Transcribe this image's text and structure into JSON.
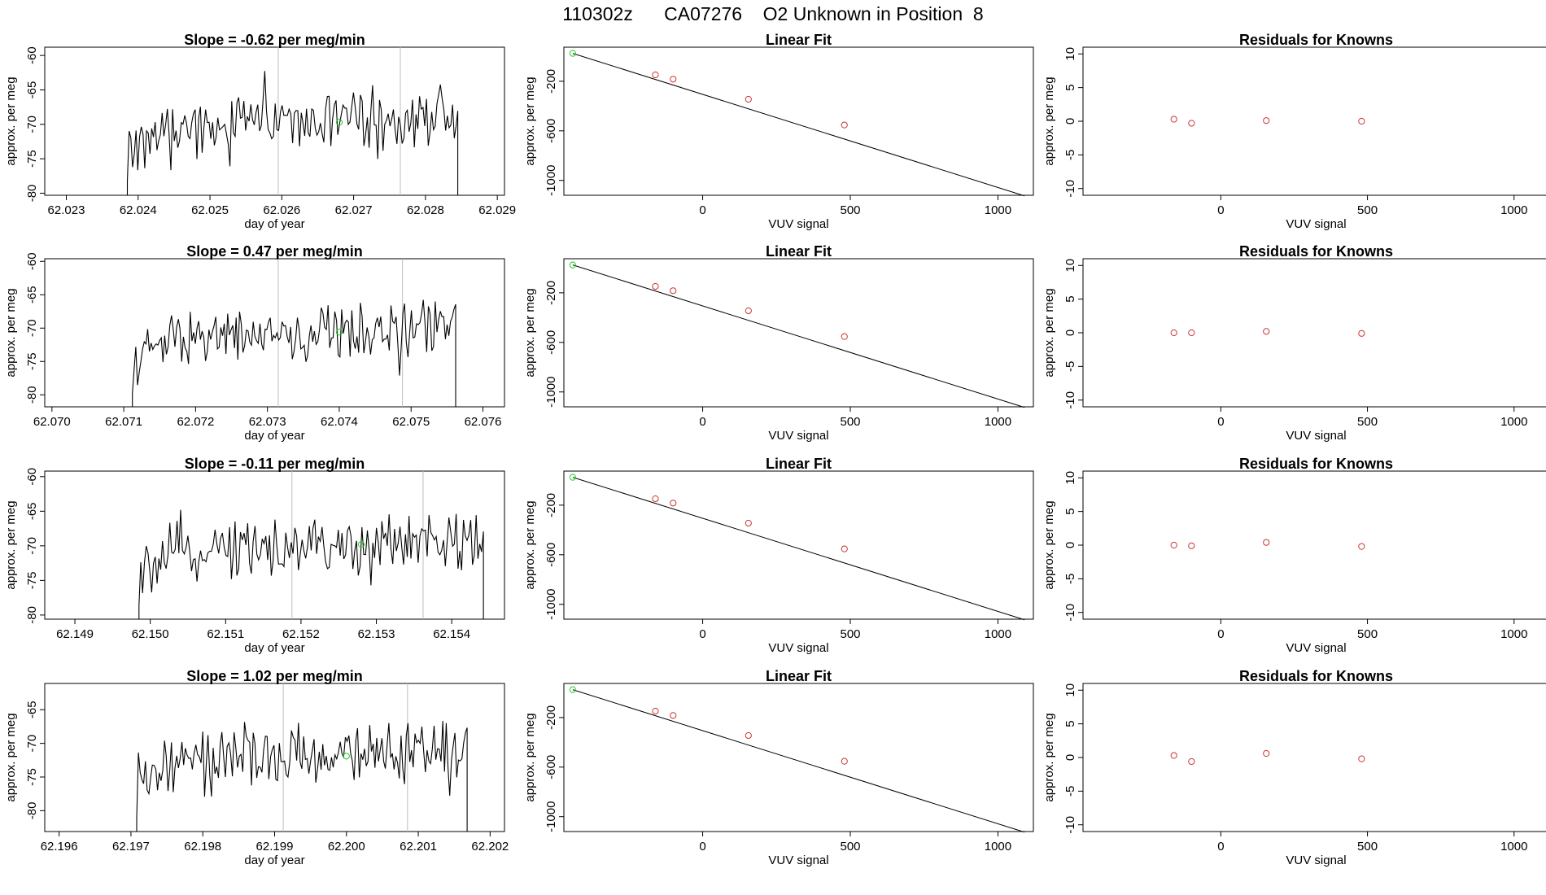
{
  "page_title": "110302z      CA07276    O2 Unknown in Position  8",
  "colors": {
    "trace": "#000000",
    "known": "#cd3333",
    "unknown": "#22cc22",
    "fit": "#000000",
    "marker": "#bebebe",
    "axis": "#000000"
  },
  "rows": [
    {
      "time_series": {
        "title": "Slope =  -0.62  per meg/min",
        "xlabel": "day of year",
        "ylabel": "approx. per meg",
        "xlim": [
          62.0227,
          62.0291
        ],
        "ylim": [
          -80.3,
          -58.8
        ],
        "xticks": [
          "62.023",
          "62.024",
          "62.025",
          "62.026",
          "62.027",
          "62.028",
          "62.029"
        ],
        "yticks": [
          "-80",
          "-75",
          "-70",
          "-65",
          "-60"
        ],
        "data_start": 62.02385,
        "data_end": 62.02845,
        "mean_level": -70.5,
        "markers": [
          62.02595,
          62.02765
        ],
        "unknown_point": {
          "x": 62.0268,
          "y": -69.7
        }
      },
      "linear_fit": {
        "title": "Linear Fit",
        "xlabel": "VUV signal",
        "ylabel": "approx. per meg",
        "xticks": [
          "0",
          "500",
          "1000"
        ],
        "yticks": [
          "-1000",
          "-600",
          "-200"
        ],
        "known_points": [
          [
            -160,
            -148
          ],
          [
            -100,
            -183
          ],
          [
            155,
            -345
          ],
          [
            480,
            -553
          ]
        ],
        "unknown_point": [
          -440,
          25
        ],
        "fit_line": [
          [
            -440,
            25
          ],
          [
            1090,
            -1125
          ]
        ]
      },
      "residuals": {
        "title": "Residuals for Knowns",
        "xlabel": "VUV signal",
        "ylabel": "approx. per meg",
        "xticks": [
          "0",
          "500",
          "1000"
        ],
        "yticks": [
          "-10",
          "-5",
          "0",
          "5",
          "10"
        ],
        "points": [
          [
            -160,
            0.3
          ],
          [
            -100,
            -0.3
          ],
          [
            155,
            0.1
          ],
          [
            480,
            0.0
          ]
        ]
      }
    },
    {
      "time_series": {
        "title": "Slope =  0.47  per meg/min",
        "xlabel": "day of year",
        "ylabel": "approx. per meg",
        "xlim": [
          62.0699,
          62.0763
        ],
        "ylim": [
          -81.8,
          -59.6
        ],
        "xticks": [
          "62.070",
          "62.071",
          "62.072",
          "62.073",
          "62.074",
          "62.075",
          "62.076"
        ],
        "yticks": [
          "-80",
          "-75",
          "-70",
          "-65",
          "-60"
        ],
        "data_start": 62.07112,
        "data_end": 62.07562,
        "mean_level": -71.5,
        "markers": [
          62.07315,
          62.07488
        ],
        "unknown_point": {
          "x": 62.074,
          "y": -70.6
        }
      },
      "linear_fit": {
        "title": "Linear Fit",
        "xlabel": "VUV signal",
        "ylabel": "approx. per meg",
        "xticks": [
          "0",
          "500",
          "1000"
        ],
        "yticks": [
          "-1000",
          "-600",
          "-200"
        ],
        "known_points": [
          [
            -160,
            -148
          ],
          [
            -100,
            -183
          ],
          [
            155,
            -345
          ],
          [
            480,
            -553
          ]
        ],
        "unknown_point": [
          -440,
          25
        ],
        "fit_line": [
          [
            -440,
            25
          ],
          [
            1090,
            -1125
          ]
        ]
      },
      "residuals": {
        "title": "Residuals for Knowns",
        "xlabel": "VUV signal",
        "ylabel": "approx. per meg",
        "xticks": [
          "0",
          "500",
          "1000"
        ],
        "yticks": [
          "-10",
          "-5",
          "0",
          "5",
          "10"
        ],
        "points": [
          [
            -160,
            0.0
          ],
          [
            -100,
            0.0
          ],
          [
            155,
            0.2
          ],
          [
            480,
            -0.1
          ]
        ]
      }
    },
    {
      "time_series": {
        "title": "Slope =  -0.11  per meg/min",
        "xlabel": "day of year",
        "ylabel": "approx. per meg",
        "xlim": [
          62.1486,
          62.1547
        ],
        "ylim": [
          -80.6,
          -59.2
        ],
        "xticks": [
          "62.149",
          "62.150",
          "62.151",
          "62.152",
          "62.153",
          "62.154"
        ],
        "yticks": [
          "-80",
          "-75",
          "-70",
          "-65",
          "-60"
        ],
        "data_start": 62.14985,
        "data_end": 62.15442,
        "mean_level": -70.8,
        "markers": [
          62.15188,
          62.15362
        ],
        "unknown_point": {
          "x": 62.1528,
          "y": -69.8
        }
      },
      "linear_fit": {
        "title": "Linear Fit",
        "xlabel": "VUV signal",
        "ylabel": "approx. per meg",
        "xticks": [
          "0",
          "500",
          "1000"
        ],
        "yticks": [
          "-1000",
          "-600",
          "-200"
        ],
        "known_points": [
          [
            -160,
            -148
          ],
          [
            -100,
            -183
          ],
          [
            155,
            -345
          ],
          [
            480,
            -553
          ]
        ],
        "unknown_point": [
          -440,
          25
        ],
        "fit_line": [
          [
            -440,
            25
          ],
          [
            1090,
            -1125
          ]
        ]
      },
      "residuals": {
        "title": "Residuals for Knowns",
        "xlabel": "VUV signal",
        "ylabel": "approx. per meg",
        "xticks": [
          "0",
          "500",
          "1000"
        ],
        "yticks": [
          "-10",
          "-5",
          "0",
          "5",
          "10"
        ],
        "points": [
          [
            -160,
            0.0
          ],
          [
            -100,
            -0.1
          ],
          [
            155,
            0.4
          ],
          [
            480,
            -0.2
          ]
        ]
      }
    },
    {
      "time_series": {
        "title": "Slope =  1.02  per meg/min",
        "xlabel": "day of year",
        "ylabel": "approx. per meg",
        "xlim": [
          62.1958,
          62.2022
        ],
        "ylim": [
          -83.1,
          -61.1
        ],
        "xticks": [
          "62.196",
          "62.197",
          "62.198",
          "62.199",
          "62.200",
          "62.201",
          "62.202"
        ],
        "yticks": [
          "-80",
          "-75",
          "-70",
          "-65"
        ],
        "data_start": 62.19708,
        "data_end": 62.20168,
        "mean_level": -72.5,
        "markers": [
          62.19912,
          62.20085
        ],
        "unknown_point": {
          "x": 62.2,
          "y": -71.9
        }
      },
      "linear_fit": {
        "title": "Linear Fit",
        "xlabel": "VUV signal",
        "ylabel": "approx. per meg",
        "xticks": [
          "0",
          "500",
          "1000"
        ],
        "yticks": [
          "-1000",
          "-600",
          "-200"
        ],
        "known_points": [
          [
            -160,
            -148
          ],
          [
            -100,
            -183
          ],
          [
            155,
            -345
          ],
          [
            480,
            -553
          ]
        ],
        "unknown_point": [
          -440,
          25
        ],
        "fit_line": [
          [
            -440,
            25
          ],
          [
            1090,
            -1125
          ]
        ]
      },
      "residuals": {
        "title": "Residuals for Knowns",
        "xlabel": "VUV signal",
        "ylabel": "approx. per meg",
        "xticks": [
          "0",
          "500",
          "1000"
        ],
        "yticks": [
          "-10",
          "-5",
          "0",
          "5",
          "10"
        ],
        "points": [
          [
            -160,
            0.3
          ],
          [
            -100,
            -0.6
          ],
          [
            155,
            0.6
          ],
          [
            480,
            -0.2
          ]
        ]
      }
    }
  ],
  "chart_data": [
    {
      "type": "line",
      "title": "Slope =  -0.62  per meg/min",
      "xlabel": "day of year",
      "ylabel": "approx. per meg",
      "xlim": [
        62.0227,
        62.0291
      ],
      "ylim": [
        -80.3,
        -58.8
      ],
      "range": [
        62.02385,
        62.02845
      ],
      "level": -70.5
    },
    {
      "type": "scatter",
      "title": "Linear Fit",
      "xlabel": "VUV signal",
      "ylabel": "approx. per meg",
      "x": [
        -160,
        -100,
        155,
        480
      ],
      "y": [
        -148,
        -183,
        -345,
        -553
      ]
    },
    {
      "type": "scatter",
      "title": "Residuals for Knowns",
      "xlabel": "VUV signal",
      "ylabel": "approx. per meg",
      "x": [
        -160,
        -100,
        155,
        480
      ],
      "y": [
        0.3,
        -0.3,
        0.1,
        0.0
      ],
      "ylim": [
        -11,
        11
      ]
    },
    {
      "type": "line",
      "title": "Slope =  0.47  per meg/min",
      "xlabel": "day of year",
      "ylabel": "approx. per meg",
      "xlim": [
        62.0699,
        62.0763
      ],
      "ylim": [
        -81.8,
        -59.6
      ]
    },
    {
      "type": "scatter",
      "title": "Linear Fit",
      "xlabel": "VUV signal",
      "ylabel": "approx. per meg",
      "x": [
        -160,
        -100,
        155,
        480
      ],
      "y": [
        -148,
        -183,
        -345,
        -553
      ]
    },
    {
      "type": "scatter",
      "title": "Residuals for Knowns",
      "xlabel": "VUV signal",
      "ylabel": "approx. per meg",
      "x": [
        -160,
        -100,
        155,
        480
      ],
      "y": [
        0.0,
        0.0,
        0.2,
        -0.1
      ],
      "ylim": [
        -11,
        11
      ]
    },
    {
      "type": "line",
      "title": "Slope =  -0.11  per meg/min",
      "xlabel": "day of year",
      "ylabel": "approx. per meg",
      "xlim": [
        62.1486,
        62.1547
      ],
      "ylim": [
        -80.6,
        -59.2
      ]
    },
    {
      "type": "scatter",
      "title": "Linear Fit",
      "xlabel": "VUV signal",
      "ylabel": "approx. per meg",
      "x": [
        -160,
        -100,
        155,
        480
      ],
      "y": [
        -148,
        -183,
        -345,
        -553
      ]
    },
    {
      "type": "scatter",
      "title": "Residuals for Knowns",
      "xlabel": "VUV signal",
      "ylabel": "approx. per meg",
      "x": [
        -160,
        -100,
        155,
        480
      ],
      "y": [
        0.0,
        -0.1,
        0.4,
        -0.2
      ],
      "ylim": [
        -11,
        11
      ]
    },
    {
      "type": "line",
      "title": "Slope =  1.02  per meg/min",
      "xlabel": "day of year",
      "ylabel": "approx. per meg",
      "xlim": [
        62.1958,
        62.2022
      ],
      "ylim": [
        -83.1,
        -61.1
      ]
    },
    {
      "type": "scatter",
      "title": "Linear Fit",
      "xlabel": "VUV signal",
      "ylabel": "approx. per meg",
      "x": [
        -160,
        -100,
        155,
        480
      ],
      "y": [
        -148,
        -183,
        -345,
        -553
      ]
    },
    {
      "type": "scatter",
      "title": "Residuals for Knowns",
      "xlabel": "VUV signal",
      "ylabel": "approx. per meg",
      "x": [
        -160,
        -100,
        155,
        480
      ],
      "y": [
        0.3,
        -0.6,
        0.6,
        -0.2
      ],
      "ylim": [
        -11,
        11
      ]
    }
  ]
}
